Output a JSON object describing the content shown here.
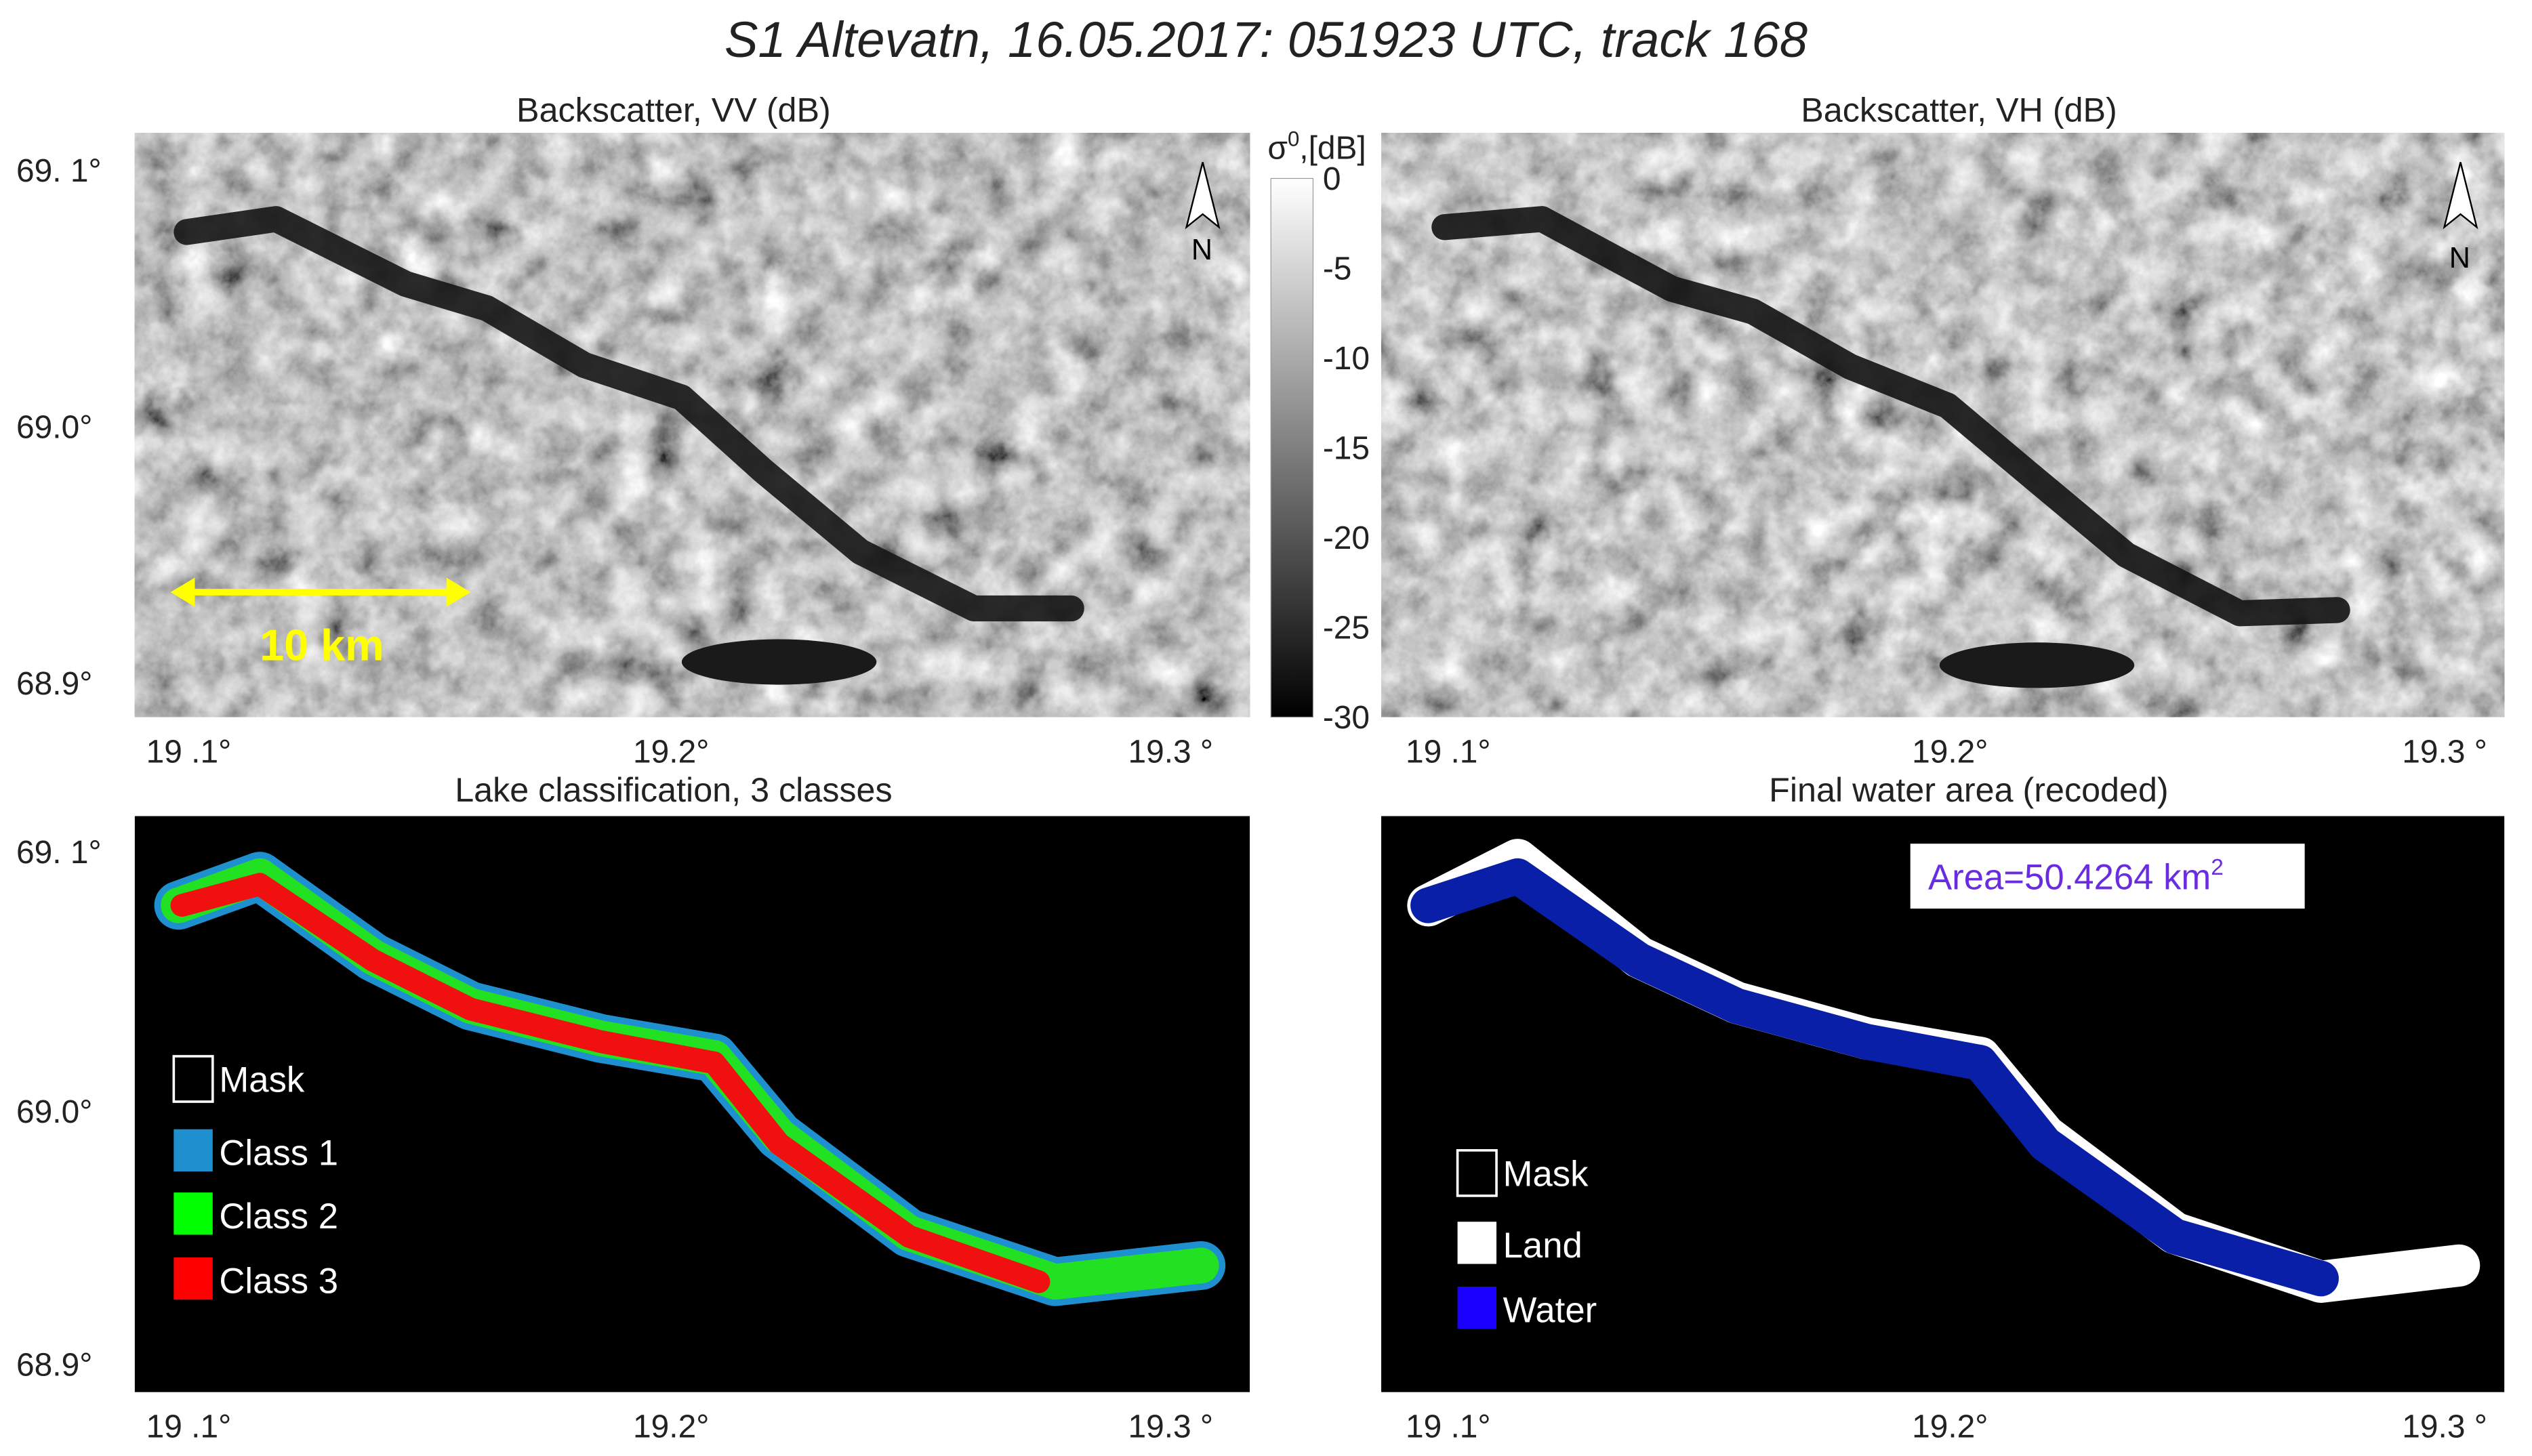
{
  "title": "S1 Altevatn, 16.05.2017: 051923 UTC, track 168",
  "panels": [
    {
      "title": "Backscatter, VV (dB)",
      "y_labels": [
        "69. 1°",
        "69.0°",
        "68.9°"
      ],
      "x_labels": [
        "19 .1°",
        "19.2°",
        "19.3 °"
      ],
      "scale_bar": "10 km",
      "north": "N"
    },
    {
      "title": "Backscatter, VH (dB)",
      "x_labels": [
        "19 .1°",
        "19.2°",
        "19.3 °"
      ],
      "north": "N"
    },
    {
      "title": "Lake classification, 3 classes",
      "y_labels": [
        "69. 1°",
        "69.0°",
        "68.9°"
      ],
      "x_labels": [
        "19 .1°",
        "19.2°",
        "19.3 °"
      ],
      "legend": [
        "Mask",
        "Class 1",
        "Class 2",
        "Class 3"
      ]
    },
    {
      "title": "Final water area (recoded)",
      "x_labels": [
        "19 .1°",
        "19.2°",
        "19.3 °"
      ],
      "annotation": "Area=50.4264 km",
      "annotation_sup": "2",
      "legend": [
        "Mask",
        "Land",
        "Water"
      ]
    }
  ],
  "colorbar": {
    "label": "σ",
    "label_sup": "0",
    "label_suffix": ",[dB]",
    "ticks": [
      "0",
      "-5",
      "-10",
      "-15",
      "-20",
      "-25",
      "-30"
    ]
  }
}
